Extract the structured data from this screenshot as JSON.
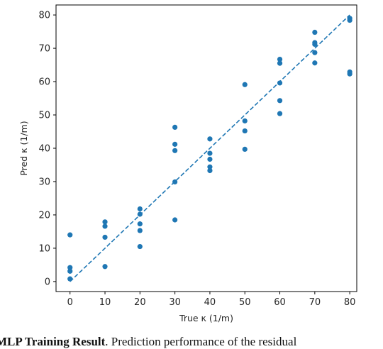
{
  "chart_data": {
    "type": "scatter",
    "xlabel": "True κ (1/m)",
    "ylabel": "Pred κ (1/m)",
    "xlim": [
      -4,
      82
    ],
    "ylim": [
      -3,
      83
    ],
    "xticks": [
      0,
      10,
      20,
      30,
      40,
      50,
      60,
      70,
      80
    ],
    "yticks": [
      0,
      10,
      20,
      30,
      40,
      50,
      60,
      70,
      80
    ],
    "grid": false,
    "series": [
      {
        "color": "#1f77b4",
        "points": [
          [
            0,
            14.0
          ],
          [
            0,
            4.2
          ],
          [
            0,
            3.1
          ],
          [
            0,
            0.8
          ],
          [
            10,
            17.9
          ],
          [
            10,
            16.6
          ],
          [
            10,
            13.3
          ],
          [
            10,
            4.5
          ],
          [
            20,
            21.8
          ],
          [
            20,
            20.2
          ],
          [
            20,
            17.3
          ],
          [
            20,
            15.3
          ],
          [
            20,
            10.5
          ],
          [
            30,
            46.3
          ],
          [
            30,
            41.2
          ],
          [
            30,
            39.3
          ],
          [
            30,
            29.9
          ],
          [
            30,
            18.5
          ],
          [
            40,
            42.8
          ],
          [
            40,
            38.5
          ],
          [
            40,
            36.7
          ],
          [
            40,
            34.4
          ],
          [
            40,
            33.3
          ],
          [
            50,
            59.1
          ],
          [
            50,
            48.2
          ],
          [
            50,
            45.2
          ],
          [
            50,
            39.7
          ],
          [
            60,
            66.7
          ],
          [
            60,
            65.5
          ],
          [
            60,
            59.6
          ],
          [
            60,
            54.3
          ],
          [
            60,
            50.4
          ],
          [
            70,
            74.8
          ],
          [
            70,
            71.7
          ],
          [
            70,
            71.2
          ],
          [
            70,
            68.7
          ],
          [
            70,
            65.6
          ],
          [
            80,
            79.0
          ],
          [
            80,
            78.4
          ],
          [
            80,
            62.9
          ],
          [
            80,
            62.3
          ]
        ]
      }
    ],
    "reference_line": {
      "from": [
        0,
        0
      ],
      "to": [
        80,
        80
      ],
      "style": "dashed",
      "color": "#1f77b4"
    }
  },
  "caption": {
    "bold": "MLP Training Result",
    "text": ". Prediction performance of the residual"
  }
}
